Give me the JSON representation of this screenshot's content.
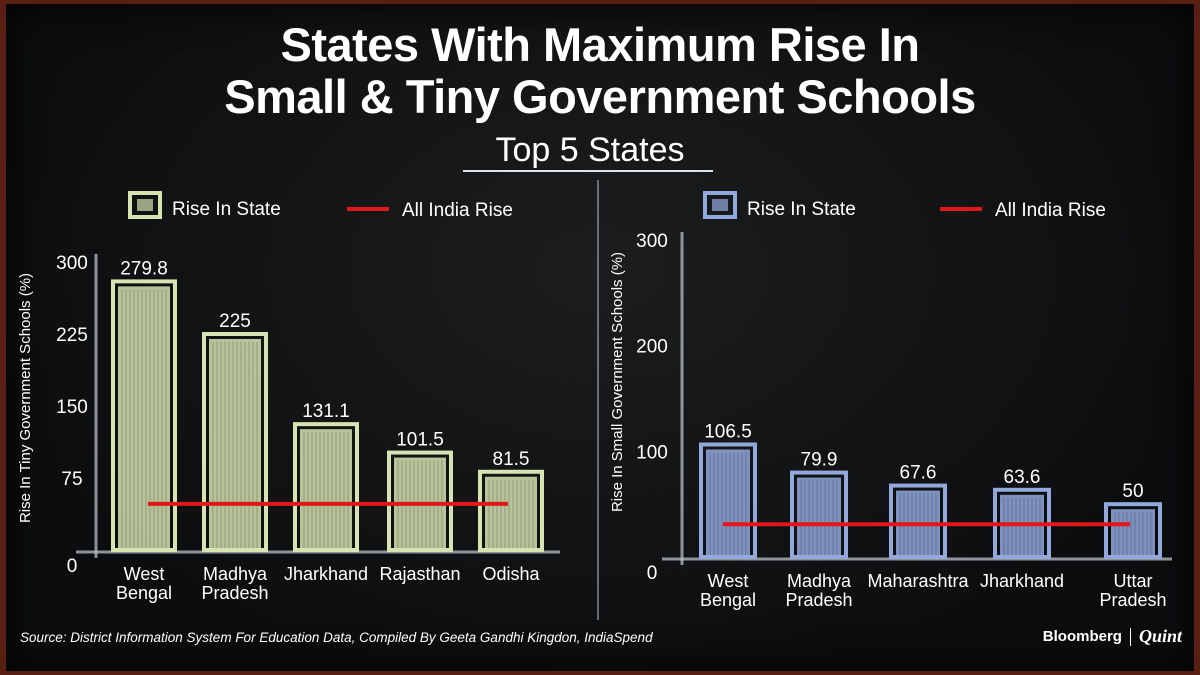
{
  "title_line1": "States With Maximum Rise In",
  "title_line2": "Small & Tiny Government Schools",
  "subtitle": "Top 5 States",
  "source": "Source: District Information System For Education Data, Compiled By Geeta Gandhi Kingdon, IndiaSpend",
  "brand": {
    "name": "Bloomberg",
    "partner": "Quint"
  },
  "colors": {
    "left_bar": "#d7e3b2",
    "right_bar": "#93a8dd",
    "reference": "#e3161a"
  },
  "chart_data": [
    {
      "type": "bar",
      "ylabel": "Rise In Tiny Government Schools (%)",
      "ylim": [
        0,
        300
      ],
      "yticks": [
        "0",
        "75",
        "150",
        "225",
        "300"
      ],
      "categories": [
        [
          "West",
          "Bengal"
        ],
        [
          "Madhya",
          "Pradesh"
        ],
        [
          "Jharkhand"
        ],
        [
          "Rajasthan"
        ],
        [
          "Odisha"
        ]
      ],
      "series": [
        {
          "name": "Rise In State",
          "values": [
            279.8,
            225,
            131.1,
            101.5,
            81.5
          ],
          "labels": [
            "279.8",
            "225",
            "131.1",
            "101.5",
            "81.5"
          ]
        }
      ],
      "reference": {
        "name": "All India Rise",
        "value": 48
      },
      "legend": "top"
    },
    {
      "type": "bar",
      "ylabel": "Rise In Small Government Schools (%)",
      "ylim": [
        0,
        300
      ],
      "yticks": [
        "0",
        "100",
        "200",
        "300"
      ],
      "categories": [
        [
          "West",
          "Bengal"
        ],
        [
          "Madhya",
          "Pradesh"
        ],
        [
          "Maharashtra"
        ],
        [
          "Jharkhand"
        ],
        [
          "Uttar",
          "Pradesh"
        ]
      ],
      "series": [
        {
          "name": "Rise In State",
          "values": [
            106.5,
            79.9,
            67.6,
            63.6,
            50
          ],
          "labels": [
            "106.5",
            "79.9",
            "67.6",
            "63.6",
            "50"
          ]
        }
      ],
      "reference": {
        "name": "All India Rise",
        "value": 31
      },
      "legend": "top"
    }
  ]
}
